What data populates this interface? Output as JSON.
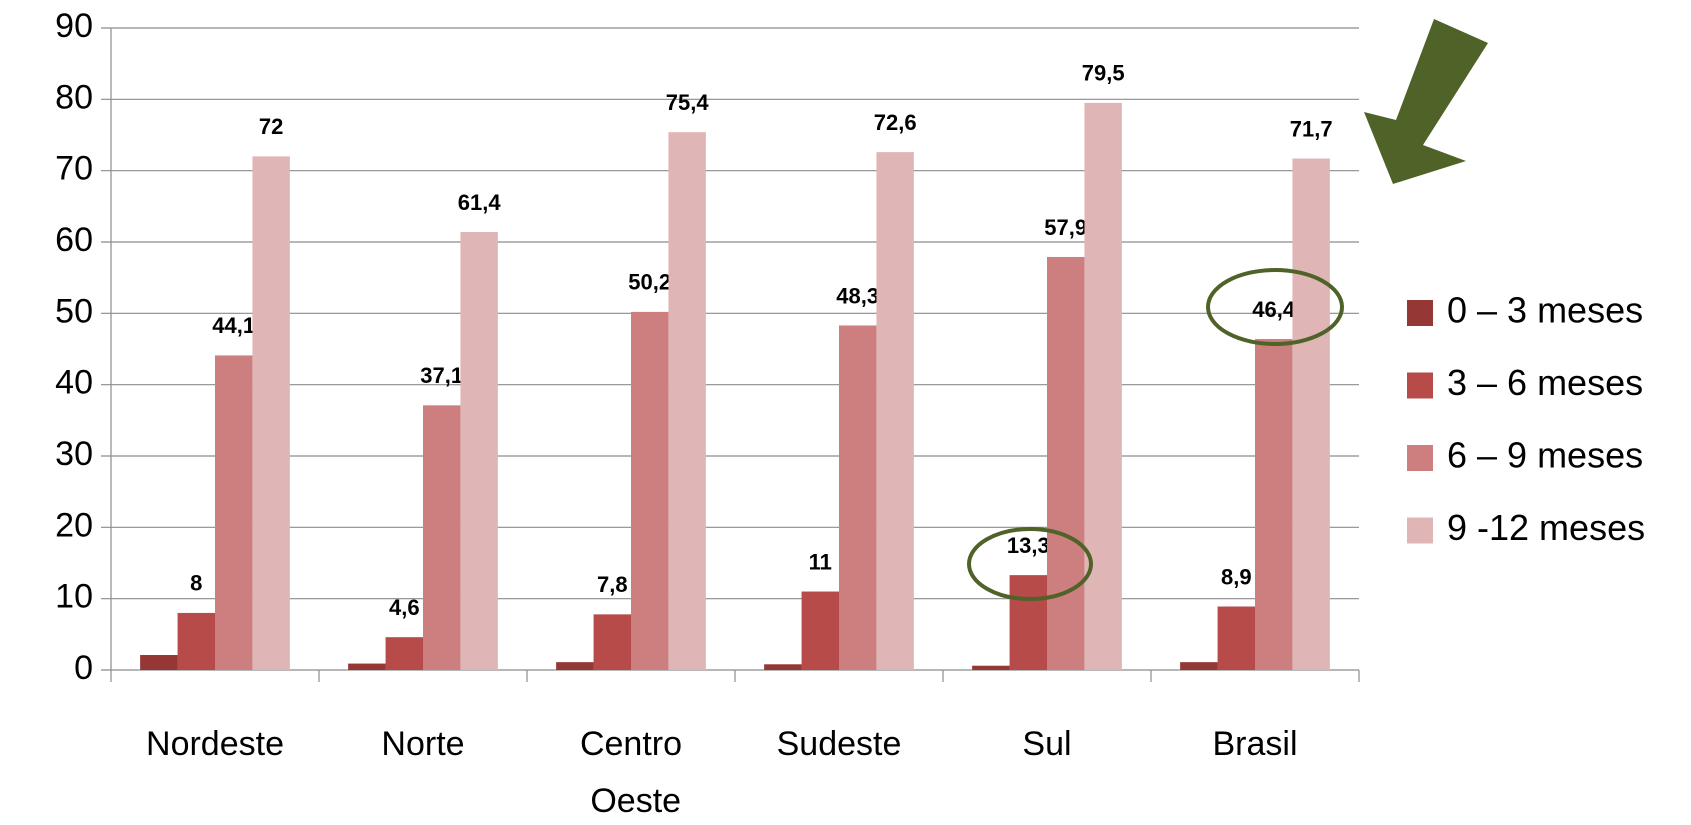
{
  "chart_data": {
    "type": "bar",
    "categories": [
      "Nordeste",
      "Norte",
      "Centro Oeste",
      "Sudeste",
      "Sul",
      "Brasil"
    ],
    "series": [
      {
        "name": "0 – 3 meses",
        "color": "#953735",
        "values": [
          2.1,
          0.9,
          1.1,
          0.8,
          0.6,
          1.1
        ]
      },
      {
        "name": "3 – 6 meses",
        "color": "#b64b49",
        "values": [
          8,
          4.6,
          7.8,
          11,
          13.3,
          8.9
        ],
        "value_labels": [
          "8",
          "4,6",
          "7,8",
          "11",
          "13,3",
          "8,9"
        ]
      },
      {
        "name": "6 – 9 meses",
        "color": "#cd7e7e",
        "values": [
          44.1,
          37.1,
          50.2,
          48.3,
          57.9,
          46.4
        ],
        "value_labels": [
          "44,1",
          "37,1",
          "50,2",
          "48,3",
          "57,9",
          "46,4"
        ]
      },
      {
        "name": "9 -12 meses",
        "color": "#e0b5b5",
        "values": [
          72,
          61.4,
          75.4,
          72.6,
          79.5,
          71.7
        ],
        "value_labels": [
          "72",
          "61,4",
          "75,4",
          "72,6",
          "79,5",
          "71,7"
        ]
      }
    ],
    "ylim": [
      0,
      90
    ],
    "yticks": [
      0,
      10,
      20,
      30,
      40,
      50,
      60,
      70,
      80,
      90
    ],
    "grid": true,
    "legend": "right"
  }
}
